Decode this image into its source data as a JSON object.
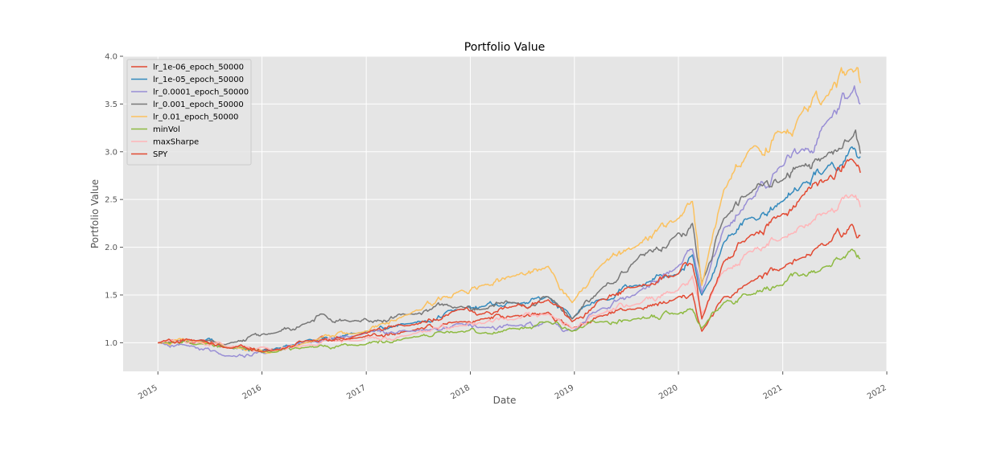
{
  "chart_data": {
    "type": "line",
    "title": "Portfolio Value",
    "xlabel": "Date",
    "ylabel": "Portfolio Value",
    "xlim": [
      "2014-09-01",
      "2022-01-01"
    ],
    "ylim": [
      0.7,
      4.0
    ],
    "x_ticks": [
      "2015",
      "2016",
      "2017",
      "2018",
      "2019",
      "2020",
      "2021",
      "2022"
    ],
    "y_ticks": [
      "1.0",
      "1.5",
      "2.0",
      "2.5",
      "3.0",
      "3.5",
      "4.0"
    ],
    "grid": true,
    "legend_position": "upper-left",
    "background": "#e5e5e5",
    "series": [
      {
        "name": "lr_1e-06_epoch_50000",
        "color": "#e24a33",
        "x": [
          "2015-01-01",
          "2015-06-01",
          "2015-09-01",
          "2016-02-01",
          "2016-06-01",
          "2016-12-01",
          "2017-06-01",
          "2017-12-01",
          "2018-02-10",
          "2018-06-01",
          "2018-10-01",
          "2018-12-24",
          "2019-04-01",
          "2019-08-01",
          "2019-12-31",
          "2020-02-19",
          "2020-03-23",
          "2020-06-08",
          "2020-09-01",
          "2020-12-31",
          "2021-03-01",
          "2021-06-01",
          "2021-09-01",
          "2021-09-30"
        ],
        "y": [
          1.0,
          1.02,
          0.95,
          0.93,
          1.0,
          1.05,
          1.12,
          1.22,
          1.25,
          1.28,
          1.32,
          1.15,
          1.28,
          1.35,
          1.48,
          1.52,
          1.12,
          1.48,
          1.62,
          1.78,
          1.88,
          2.02,
          2.24,
          2.12
        ]
      },
      {
        "name": "lr_1e-05_epoch_50000",
        "color": "#348abd",
        "x": [
          "2015-01-01",
          "2015-06-01",
          "2015-09-01",
          "2016-02-01",
          "2016-06-01",
          "2016-12-01",
          "2017-06-01",
          "2017-12-01",
          "2018-02-10",
          "2018-06-01",
          "2018-10-01",
          "2018-12-24",
          "2019-04-01",
          "2019-08-01",
          "2019-12-31",
          "2020-02-19",
          "2020-03-23",
          "2020-06-08",
          "2020-09-01",
          "2020-12-31",
          "2021-03-01",
          "2021-06-01",
          "2021-09-01",
          "2021-09-30"
        ],
        "y": [
          1.0,
          1.03,
          0.96,
          0.92,
          1.02,
          1.1,
          1.2,
          1.35,
          1.38,
          1.42,
          1.48,
          1.25,
          1.45,
          1.6,
          1.72,
          1.92,
          1.5,
          2.05,
          2.3,
          2.48,
          2.62,
          2.82,
          3.05,
          2.95
        ]
      },
      {
        "name": "lr_0.0001_epoch_50000",
        "color": "#988ed5",
        "x": [
          "2015-01-01",
          "2015-04-01",
          "2015-08-25",
          "2016-02-11",
          "2016-06-01",
          "2016-12-01",
          "2017-06-01",
          "2017-12-01",
          "2018-02-10",
          "2018-06-01",
          "2018-10-01",
          "2018-12-24",
          "2019-04-01",
          "2019-08-01",
          "2019-12-31",
          "2020-02-19",
          "2020-03-23",
          "2020-06-08",
          "2020-09-01",
          "2020-12-31",
          "2021-03-01",
          "2021-06-01",
          "2021-09-01",
          "2021-09-30"
        ],
        "y": [
          1.0,
          0.98,
          0.86,
          0.9,
          1.0,
          1.08,
          1.12,
          1.2,
          1.16,
          1.18,
          1.22,
          1.12,
          1.35,
          1.5,
          1.8,
          1.98,
          1.52,
          2.2,
          2.5,
          2.85,
          3.0,
          3.3,
          3.62,
          3.5
        ]
      },
      {
        "name": "lr_0.001_epoch_50000",
        "color": "#777777",
        "x": [
          "2015-01-01",
          "2015-06-01",
          "2015-08-25",
          "2016-02-11",
          "2016-06-01",
          "2016-08-01",
          "2016-11-04",
          "2017-06-01",
          "2017-12-01",
          "2018-02-10",
          "2018-06-01",
          "2018-10-01",
          "2018-12-24",
          "2019-04-01",
          "2019-08-01",
          "2019-12-31",
          "2020-02-19",
          "2020-03-23",
          "2020-06-08",
          "2020-09-01",
          "2020-12-31",
          "2021-03-01",
          "2021-06-01",
          "2021-09-01",
          "2021-09-30"
        ],
        "y": [
          1.0,
          1.02,
          0.98,
          1.1,
          1.2,
          1.3,
          1.22,
          1.3,
          1.38,
          1.35,
          1.42,
          1.48,
          1.25,
          1.55,
          1.85,
          2.15,
          2.25,
          1.62,
          2.3,
          2.55,
          2.7,
          2.85,
          2.95,
          3.15,
          2.98
        ]
      },
      {
        "name": "lr_0.01_epoch_50000",
        "color": "#fbc15e",
        "x": [
          "2015-01-01",
          "2015-06-01",
          "2015-09-01",
          "2016-02-11",
          "2016-06-01",
          "2016-12-01",
          "2017-06-01",
          "2017-12-01",
          "2018-02-10",
          "2018-06-01",
          "2018-10-01",
          "2018-12-24",
          "2019-04-01",
          "2019-08-01",
          "2019-12-31",
          "2020-02-19",
          "2020-03-23",
          "2020-06-08",
          "2020-09-01",
          "2020-12-31",
          "2021-03-01",
          "2021-06-01",
          "2021-09-01",
          "2021-09-30"
        ],
        "y": [
          1.0,
          1.01,
          0.95,
          0.9,
          1.0,
          1.1,
          1.3,
          1.55,
          1.6,
          1.7,
          1.8,
          1.42,
          1.8,
          2.0,
          2.3,
          2.48,
          1.6,
          2.6,
          3.0,
          3.2,
          3.38,
          3.58,
          3.86,
          3.72
        ]
      },
      {
        "name": "minVol",
        "color": "#8eba42",
        "x": [
          "2015-01-01",
          "2015-06-01",
          "2015-09-01",
          "2016-02-11",
          "2016-06-01",
          "2016-12-01",
          "2017-06-01",
          "2017-12-01",
          "2018-02-10",
          "2018-06-01",
          "2018-10-01",
          "2018-12-24",
          "2019-04-01",
          "2019-08-01",
          "2019-12-31",
          "2020-02-19",
          "2020-03-23",
          "2020-06-08",
          "2020-09-01",
          "2020-12-31",
          "2021-03-01",
          "2021-06-01",
          "2021-09-01",
          "2021-09-30"
        ],
        "y": [
          1.0,
          0.99,
          0.95,
          0.9,
          0.95,
          0.97,
          1.05,
          1.12,
          1.1,
          1.15,
          1.22,
          1.12,
          1.22,
          1.25,
          1.3,
          1.35,
          1.15,
          1.42,
          1.5,
          1.6,
          1.7,
          1.8,
          1.98,
          1.88
        ]
      },
      {
        "name": "maxSharpe",
        "color": "#ffb5b8",
        "x": [
          "2015-01-01",
          "2015-06-01",
          "2015-09-01",
          "2016-02-11",
          "2016-06-01",
          "2016-12-01",
          "2017-06-01",
          "2017-12-01",
          "2018-02-10",
          "2018-06-01",
          "2018-10-01",
          "2018-12-24",
          "2019-04-01",
          "2019-08-01",
          "2019-12-31",
          "2020-02-19",
          "2020-03-23",
          "2020-06-08",
          "2020-09-01",
          "2020-12-31",
          "2021-03-01",
          "2021-06-01",
          "2021-09-01",
          "2021-09-30"
        ],
        "y": [
          1.0,
          1.0,
          0.96,
          0.92,
          0.97,
          1.02,
          1.08,
          1.18,
          1.2,
          1.24,
          1.3,
          1.15,
          1.3,
          1.4,
          1.55,
          1.7,
          1.3,
          1.75,
          1.95,
          2.1,
          2.22,
          2.35,
          2.55,
          2.42
        ]
      },
      {
        "name": "SPY",
        "color": "#e24a33",
        "x": [
          "2015-01-01",
          "2015-06-01",
          "2015-08-25",
          "2016-02-11",
          "2016-06-01",
          "2016-12-01",
          "2017-06-01",
          "2017-12-01",
          "2018-02-10",
          "2018-06-01",
          "2018-10-01",
          "2018-12-24",
          "2019-04-01",
          "2019-08-01",
          "2019-12-31",
          "2020-02-19",
          "2020-03-23",
          "2020-06-08",
          "2020-09-01",
          "2020-12-31",
          "2021-03-01",
          "2021-06-01",
          "2021-09-01",
          "2021-09-30"
        ],
        "y": [
          1.0,
          1.03,
          0.95,
          0.92,
          1.02,
          1.08,
          1.18,
          1.35,
          1.3,
          1.38,
          1.45,
          1.22,
          1.45,
          1.58,
          1.72,
          1.82,
          1.25,
          1.85,
          2.1,
          2.35,
          2.5,
          2.7,
          2.92,
          2.78
        ]
      }
    ]
  }
}
